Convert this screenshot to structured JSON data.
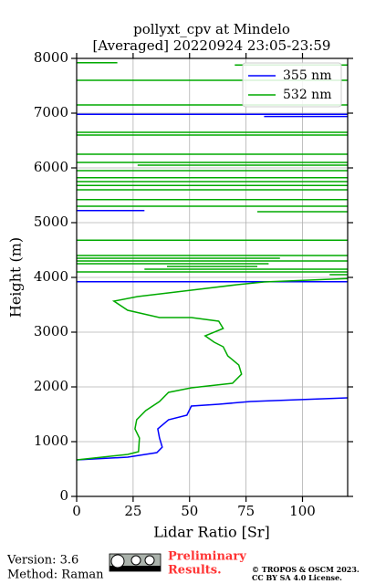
{
  "chart_data": {
    "type": "line",
    "title": [
      "pollyxt_cpv at Mindelo",
      "[Averaged] 20220924 23:05-23:59"
    ],
    "x_label": "Lidar Ratio [Sr]",
    "y_label": "Height (m)",
    "xlim": [
      0,
      120
    ],
    "ylim": [
      0,
      8000
    ],
    "xticks": [
      0,
      25,
      50,
      75,
      100
    ],
    "yticks": [
      0,
      1000,
      2000,
      3000,
      4000,
      5000,
      6000,
      7000,
      8000
    ],
    "grid": true,
    "legend": "upper right",
    "series": [
      {
        "name": "355 nm",
        "color": "#0000ff",
        "values": [
          0,
          22.6,
          35.5,
          37.9,
          36.7,
          35.9,
          40.7,
          48.8,
          50.8,
          62.9,
          77,
          120,
          null,
          0,
          120,
          null,
          0,
          30,
          null,
          0,
          120,
          null,
          83,
          120
        ],
        "heights": [
          667,
          717,
          800,
          900,
          1067,
          1233,
          1400,
          1483,
          1650,
          1683,
          1733,
          1800,
          null,
          3920,
          3920,
          null,
          5220,
          5220,
          null,
          6980,
          6980,
          null,
          6940,
          6940
        ]
      },
      {
        "name": "532 nm",
        "color": "#00aa00",
        "values": [
          0,
          22.6,
          27.4,
          27.8,
          25.8,
          26.6,
          30.6,
          36.7,
          40.7,
          50.8,
          69,
          73,
          71.8,
          66.9,
          64.9,
          60.9,
          56.9,
          64.9,
          62.9,
          50.8,
          36.7,
          22.6,
          16.5,
          27,
          50.8,
          71,
          83,
          120,
          null,
          112,
          120,
          null,
          0,
          120,
          null,
          30,
          120,
          null,
          40,
          80,
          null,
          0,
          85,
          null,
          0,
          120,
          null,
          0,
          90,
          null,
          0,
          120,
          null,
          0,
          120,
          null,
          80,
          120,
          null,
          0,
          120,
          null,
          0,
          120,
          null,
          0,
          120,
          null,
          0,
          120,
          null,
          0,
          120,
          null,
          0,
          120,
          null,
          0,
          120,
          null,
          27,
          120,
          null,
          0,
          120,
          null,
          0,
          120,
          null,
          0,
          120,
          null,
          0,
          120,
          null,
          0,
          120,
          null,
          0,
          120,
          null,
          0,
          18,
          null,
          70,
          120
        ],
        "heights": [
          667,
          767,
          817,
          1067,
          1233,
          1400,
          1567,
          1733,
          1900,
          1983,
          2067,
          2233,
          2400,
          2567,
          2733,
          2817,
          2933,
          3067,
          3200,
          3267,
          3267,
          3400,
          3567,
          3650,
          3767,
          3867,
          3917,
          3980,
          null,
          4050,
          4050,
          null,
          4100,
          4100,
          null,
          4150,
          4150,
          null,
          4200,
          4200,
          null,
          4250,
          4250,
          null,
          4300,
          4300,
          null,
          4350,
          4350,
          null,
          4400,
          4400,
          null,
          4680,
          4680,
          null,
          5200,
          5200,
          null,
          5300,
          5300,
          null,
          5420,
          5420,
          null,
          5600,
          5600,
          null,
          5680,
          5680,
          null,
          5750,
          5750,
          null,
          5820,
          5820,
          null,
          5950,
          5950,
          null,
          6050,
          6050,
          null,
          6100,
          6100,
          null,
          6250,
          6250,
          null,
          6600,
          6600,
          null,
          6650,
          6650,
          null,
          7150,
          7150,
          null,
          7600,
          7600,
          null,
          7920,
          7920,
          null,
          7880,
          7880
        ]
      }
    ]
  },
  "footer": {
    "version": "Version: 3.6",
    "method": "Method: Raman",
    "preliminary": [
      "Preliminary",
      "Results."
    ],
    "copyright": "© TROPOS & OSCM 2023.",
    "license": "CC BY SA 4.0 License."
  }
}
